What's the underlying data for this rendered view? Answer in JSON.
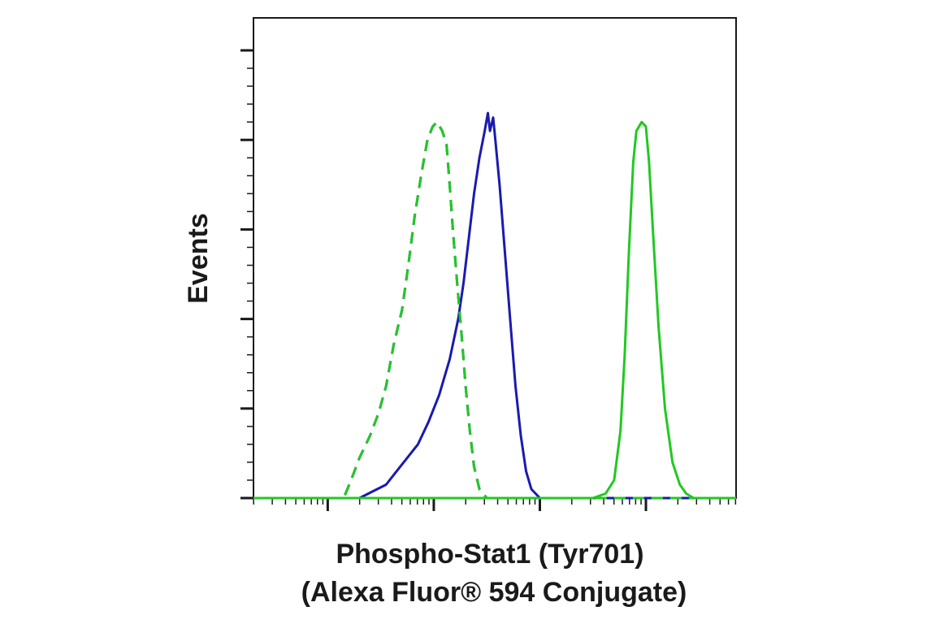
{
  "chart_data": {
    "type": "line",
    "title": "",
    "xlabel_line1": "Phospho-Stat1 (Tyr701)",
    "xlabel_line2": "(Alexa Fluor® 594 Conjugate)",
    "ylabel": "Events",
    "x_scale": "log",
    "xlim": [
      -0.7,
      3.85
    ],
    "ylim": [
      0,
      100
    ],
    "grid": false,
    "legend": "none",
    "y_major_ticks": [
      0,
      20,
      40,
      60,
      80,
      100
    ],
    "x_major_ticks": [
      0,
      1,
      2,
      3
    ],
    "series": [
      {
        "color": "#1a1ab0",
        "dash": false,
        "points": [
          [
            -0.7,
            0
          ],
          [
            0.3,
            0
          ],
          [
            0.55,
            3
          ],
          [
            0.65,
            6
          ],
          [
            0.75,
            9
          ],
          [
            0.85,
            12
          ],
          [
            0.95,
            17
          ],
          [
            1.05,
            23
          ],
          [
            1.15,
            31
          ],
          [
            1.23,
            40
          ],
          [
            1.28,
            48
          ],
          [
            1.33,
            58
          ],
          [
            1.38,
            68
          ],
          [
            1.43,
            76
          ],
          [
            1.48,
            82
          ],
          [
            1.51,
            86
          ],
          [
            1.53,
            82
          ],
          [
            1.56,
            85
          ],
          [
            1.58,
            80
          ],
          [
            1.62,
            70
          ],
          [
            1.67,
            55
          ],
          [
            1.72,
            40
          ],
          [
            1.77,
            25
          ],
          [
            1.82,
            14
          ],
          [
            1.87,
            6
          ],
          [
            1.92,
            2
          ],
          [
            2.0,
            0
          ],
          [
            3.85,
            0
          ]
        ]
      },
      {
        "color": "#1a1ab0",
        "dash": true,
        "points": [
          [
            -0.7,
            0
          ],
          [
            0.15,
            0
          ],
          [
            0.22,
            4
          ],
          [
            0.3,
            9
          ],
          [
            0.4,
            14
          ],
          [
            0.48,
            19
          ],
          [
            0.55,
            25
          ],
          [
            0.62,
            34
          ],
          [
            0.66,
            38
          ],
          [
            0.7,
            42
          ],
          [
            0.76,
            52
          ],
          [
            0.82,
            63
          ],
          [
            0.88,
            72
          ],
          [
            0.94,
            80
          ],
          [
            0.99,
            83
          ],
          [
            1.03,
            84
          ],
          [
            1.08,
            82
          ],
          [
            1.12,
            79
          ],
          [
            1.15,
            70
          ],
          [
            1.18,
            60
          ],
          [
            1.22,
            48
          ],
          [
            1.26,
            37
          ],
          [
            1.3,
            25
          ],
          [
            1.34,
            15
          ],
          [
            1.38,
            7
          ],
          [
            1.43,
            2
          ],
          [
            1.5,
            0
          ],
          [
            3.85,
            0
          ]
        ]
      },
      {
        "color": "#22c822",
        "dash": true,
        "points": [
          [
            -0.7,
            0
          ],
          [
            0.15,
            0
          ],
          [
            0.22,
            4
          ],
          [
            0.3,
            9
          ],
          [
            0.4,
            14
          ],
          [
            0.48,
            19
          ],
          [
            0.55,
            25
          ],
          [
            0.62,
            34
          ],
          [
            0.66,
            38
          ],
          [
            0.7,
            42
          ],
          [
            0.76,
            52
          ],
          [
            0.82,
            63
          ],
          [
            0.88,
            72
          ],
          [
            0.94,
            80
          ],
          [
            0.99,
            83
          ],
          [
            1.03,
            84
          ],
          [
            1.08,
            82
          ],
          [
            1.12,
            79
          ],
          [
            1.15,
            70
          ],
          [
            1.18,
            60
          ],
          [
            1.22,
            48
          ],
          [
            1.26,
            37
          ],
          [
            1.3,
            25
          ],
          [
            1.34,
            15
          ],
          [
            1.38,
            7
          ],
          [
            1.43,
            2
          ],
          [
            1.5,
            0
          ],
          [
            3.85,
            0
          ]
        ]
      },
      {
        "color": "#22c822",
        "dash": false,
        "points": [
          [
            -0.7,
            0
          ],
          [
            2.5,
            0
          ],
          [
            2.62,
            1
          ],
          [
            2.7,
            4
          ],
          [
            2.76,
            15
          ],
          [
            2.8,
            32
          ],
          [
            2.84,
            55
          ],
          [
            2.88,
            75
          ],
          [
            2.91,
            82
          ],
          [
            2.96,
            84
          ],
          [
            3.0,
            83
          ],
          [
            3.03,
            75
          ],
          [
            3.07,
            58
          ],
          [
            3.12,
            38
          ],
          [
            3.18,
            20
          ],
          [
            3.25,
            8
          ],
          [
            3.32,
            3
          ],
          [
            3.38,
            1
          ],
          [
            3.45,
            0
          ],
          [
            3.85,
            0
          ]
        ]
      }
    ]
  }
}
